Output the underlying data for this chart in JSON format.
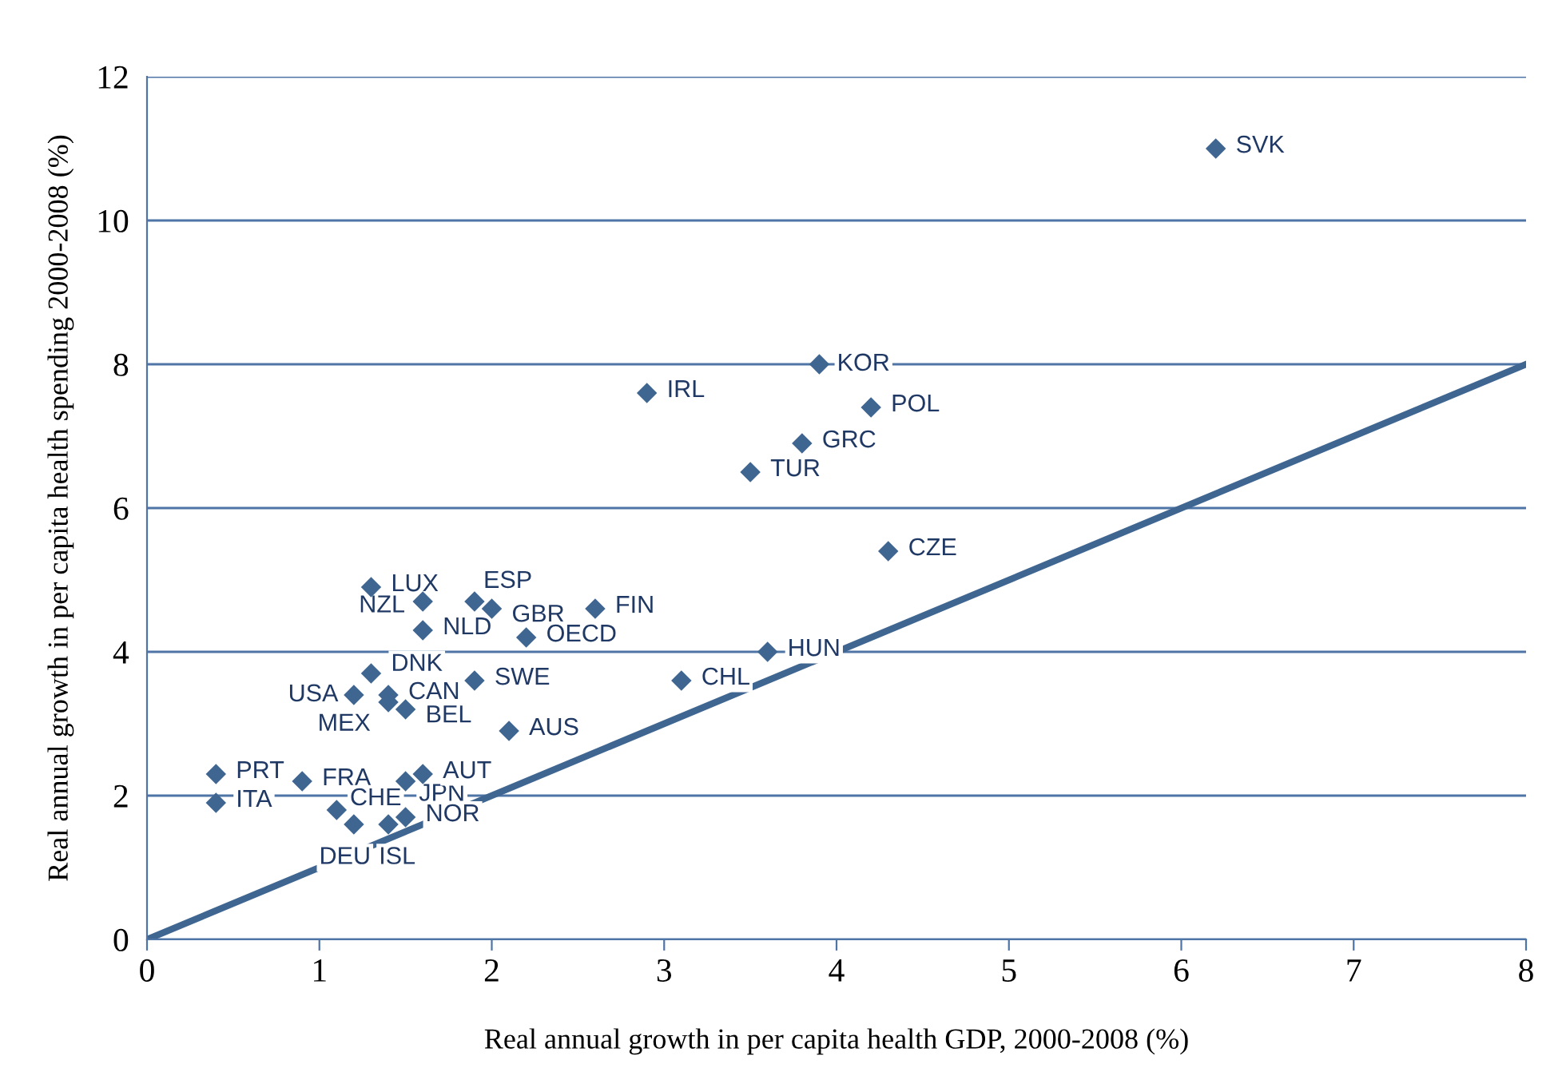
{
  "chart_data": {
    "type": "scatter",
    "xlabel": "Real annual growth in per capita health GDP, 2000-2008 (%)",
    "ylabel": "Real annual growth in per capita health spending 2000-2008 (%)",
    "xlim": [
      0,
      8
    ],
    "ylim": [
      0,
      12
    ],
    "xticks": [
      0,
      1,
      2,
      3,
      4,
      5,
      6,
      7,
      8
    ],
    "yticks": [
      0,
      2,
      4,
      6,
      8,
      10,
      12
    ],
    "grid": "y",
    "legend": false,
    "marker": "diamond",
    "series": [
      {
        "type": "scatter",
        "color": "#3f6591",
        "x": [
          6.2,
          3.9,
          2.9,
          4.2,
          3.8,
          3.5,
          4.3,
          2.6,
          3.6,
          3.1,
          1.3,
          1.6,
          1.9,
          2.0,
          1.6,
          2.2,
          1.3,
          1.2,
          1.4,
          1.4,
          1.5,
          1.9,
          2.1,
          0.4,
          0.4,
          0.9,
          1.5,
          1.6,
          1.1,
          1.2,
          1.4,
          1.5
        ],
        "values": [
          11.0,
          8.0,
          7.6,
          7.4,
          6.9,
          6.5,
          5.4,
          4.6,
          4.0,
          3.6,
          4.9,
          4.7,
          4.7,
          4.6,
          4.3,
          4.2,
          3.7,
          3.4,
          3.4,
          3.3,
          3.2,
          3.6,
          2.9,
          2.3,
          1.9,
          2.2,
          2.2,
          2.3,
          1.8,
          1.6,
          1.6,
          1.7
        ]
      },
      {
        "type": "line",
        "color": "#3f6591",
        "x": [
          0,
          8
        ],
        "values": [
          0,
          8
        ],
        "marker": "none",
        "line_style": "solid"
      }
    ],
    "annotations": [
      {
        "text": "SVK",
        "x": 6.2,
        "y": 11.0
      },
      {
        "text": "KOR",
        "x": 3.9,
        "y": 8.0
      },
      {
        "text": "IRL",
        "x": 2.9,
        "y": 7.6
      },
      {
        "text": "POL",
        "x": 4.2,
        "y": 7.4
      },
      {
        "text": "GRC",
        "x": 3.8,
        "y": 6.9
      },
      {
        "text": "TUR",
        "x": 3.5,
        "y": 6.5
      },
      {
        "text": "CZE",
        "x": 4.3,
        "y": 5.4
      },
      {
        "text": "FIN",
        "x": 2.6,
        "y": 4.6
      },
      {
        "text": "HUN",
        "x": 3.6,
        "y": 4.0
      },
      {
        "text": "CHL",
        "x": 3.1,
        "y": 3.6
      },
      {
        "text": "LUX",
        "x": 1.3,
        "y": 4.9
      },
      {
        "text": "NZL",
        "x": 1.6,
        "y": 4.7
      },
      {
        "text": "ESP",
        "x": 1.9,
        "y": 4.7
      },
      {
        "text": "GBR",
        "x": 2.0,
        "y": 4.6
      },
      {
        "text": "NLD",
        "x": 1.6,
        "y": 4.3
      },
      {
        "text": "OECD",
        "x": 2.2,
        "y": 4.2
      },
      {
        "text": "DNK",
        "x": 1.3,
        "y": 3.7
      },
      {
        "text": "USA",
        "x": 1.2,
        "y": 3.4
      },
      {
        "text": "CAN",
        "x": 1.4,
        "y": 3.4
      },
      {
        "text": "MEX",
        "x": 1.4,
        "y": 3.3
      },
      {
        "text": "BEL",
        "x": 1.5,
        "y": 3.2
      },
      {
        "text": "SWE",
        "x": 1.9,
        "y": 3.6
      },
      {
        "text": "AUS",
        "x": 2.1,
        "y": 2.9
      },
      {
        "text": "PRT",
        "x": 0.4,
        "y": 2.3
      },
      {
        "text": "ITA",
        "x": 0.4,
        "y": 1.9
      },
      {
        "text": "FRA",
        "x": 0.9,
        "y": 2.2
      },
      {
        "text": "JPN",
        "x": 1.5,
        "y": 2.2
      },
      {
        "text": "AUT",
        "x": 1.6,
        "y": 2.3
      },
      {
        "text": "CHE",
        "x": 1.1,
        "y": 1.8
      },
      {
        "text": "DEU",
        "x": 1.2,
        "y": 1.6
      },
      {
        "text": "ISL",
        "x": 1.4,
        "y": 1.6
      },
      {
        "text": "NOR",
        "x": 1.5,
        "y": 1.7
      }
    ]
  }
}
